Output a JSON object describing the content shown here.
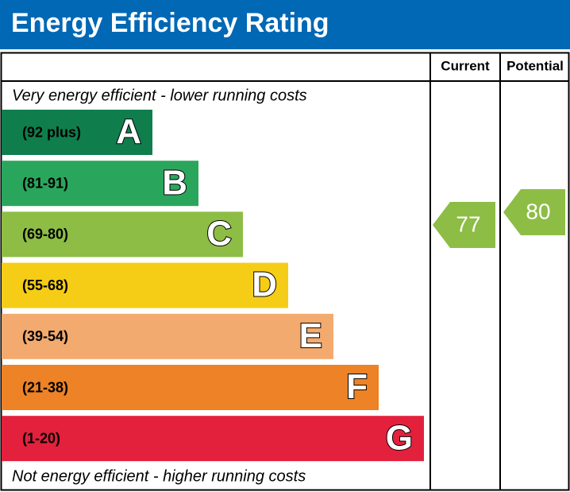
{
  "title": "Energy Efficiency Rating",
  "columns": {
    "current": "Current",
    "potential": "Potential"
  },
  "top_note": "Very energy efficient - lower running costs",
  "bottom_note": "Not energy efficient - higher running costs",
  "bands": [
    {
      "range": "(92 plus)",
      "letter": "A",
      "color": "#0f7e4c"
    },
    {
      "range": "(81-91)",
      "letter": "B",
      "color": "#2aa65c"
    },
    {
      "range": "(69-80)",
      "letter": "C",
      "color": "#8dbd45"
    },
    {
      "range": "(55-68)",
      "letter": "D",
      "color": "#f6cd16"
    },
    {
      "range": "(39-54)",
      "letter": "E",
      "color": "#f2aa6e"
    },
    {
      "range": "(21-38)",
      "letter": "F",
      "color": "#ed8226"
    },
    {
      "range": "(1-20)",
      "letter": "G",
      "color": "#e3213c"
    }
  ],
  "current": {
    "value": 77,
    "color": "#8dbd45"
  },
  "potential": {
    "value": 80,
    "color": "#8dbd45"
  }
}
